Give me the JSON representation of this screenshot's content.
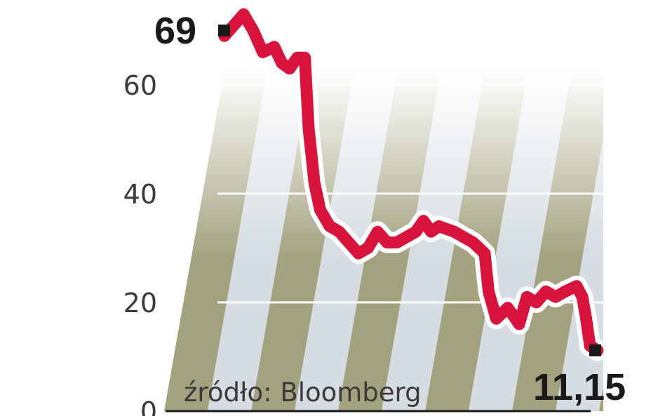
{
  "chart_data": {
    "type": "line",
    "y_ticks": [
      "0",
      "20",
      "40",
      "60"
    ],
    "ylim": [
      0,
      70
    ],
    "grid": true,
    "start_label": "69",
    "end_label": "11,15",
    "source": "źródło: Bloomberg",
    "colors": {
      "line": "#d9143c",
      "halo": "#ffffff",
      "band_dark": "#a3a27f",
      "band_light": "#d5dde2",
      "grid": "#ffffff",
      "text": "#1a1a1a"
    },
    "series": [
      {
        "values": [
          [
            0,
            69
          ],
          [
            0.5,
            71
          ],
          [
            1,
            73
          ],
          [
            1.5,
            70
          ],
          [
            2,
            66
          ],
          [
            2.6,
            67
          ],
          [
            3,
            64
          ],
          [
            3.4,
            63
          ],
          [
            3.8,
            65
          ],
          [
            4.2,
            65
          ],
          [
            4.4,
            52
          ],
          [
            4.7,
            42
          ],
          [
            5,
            37
          ],
          [
            5.5,
            34
          ],
          [
            6,
            33
          ],
          [
            6.5,
            31
          ],
          [
            7,
            29
          ],
          [
            7.5,
            30
          ],
          [
            8,
            33
          ],
          [
            8.5,
            31
          ],
          [
            9,
            31
          ],
          [
            10,
            33
          ],
          [
            10.4,
            35
          ],
          [
            10.8,
            33
          ],
          [
            11.2,
            34
          ],
          [
            12,
            33
          ],
          [
            12.5,
            32
          ],
          [
            13,
            31
          ],
          [
            13.6,
            29
          ],
          [
            13.8,
            22
          ],
          [
            14.2,
            17
          ],
          [
            14.8,
            19
          ],
          [
            15.4,
            16
          ],
          [
            15.8,
            21
          ],
          [
            16.3,
            20
          ],
          [
            16.8,
            22
          ],
          [
            17.3,
            21
          ],
          [
            17.8,
            22
          ],
          [
            18.4,
            23
          ],
          [
            18.7,
            21
          ],
          [
            18.9,
            17
          ],
          [
            19.1,
            12
          ],
          [
            19.5,
            11.15
          ]
        ]
      }
    ]
  }
}
